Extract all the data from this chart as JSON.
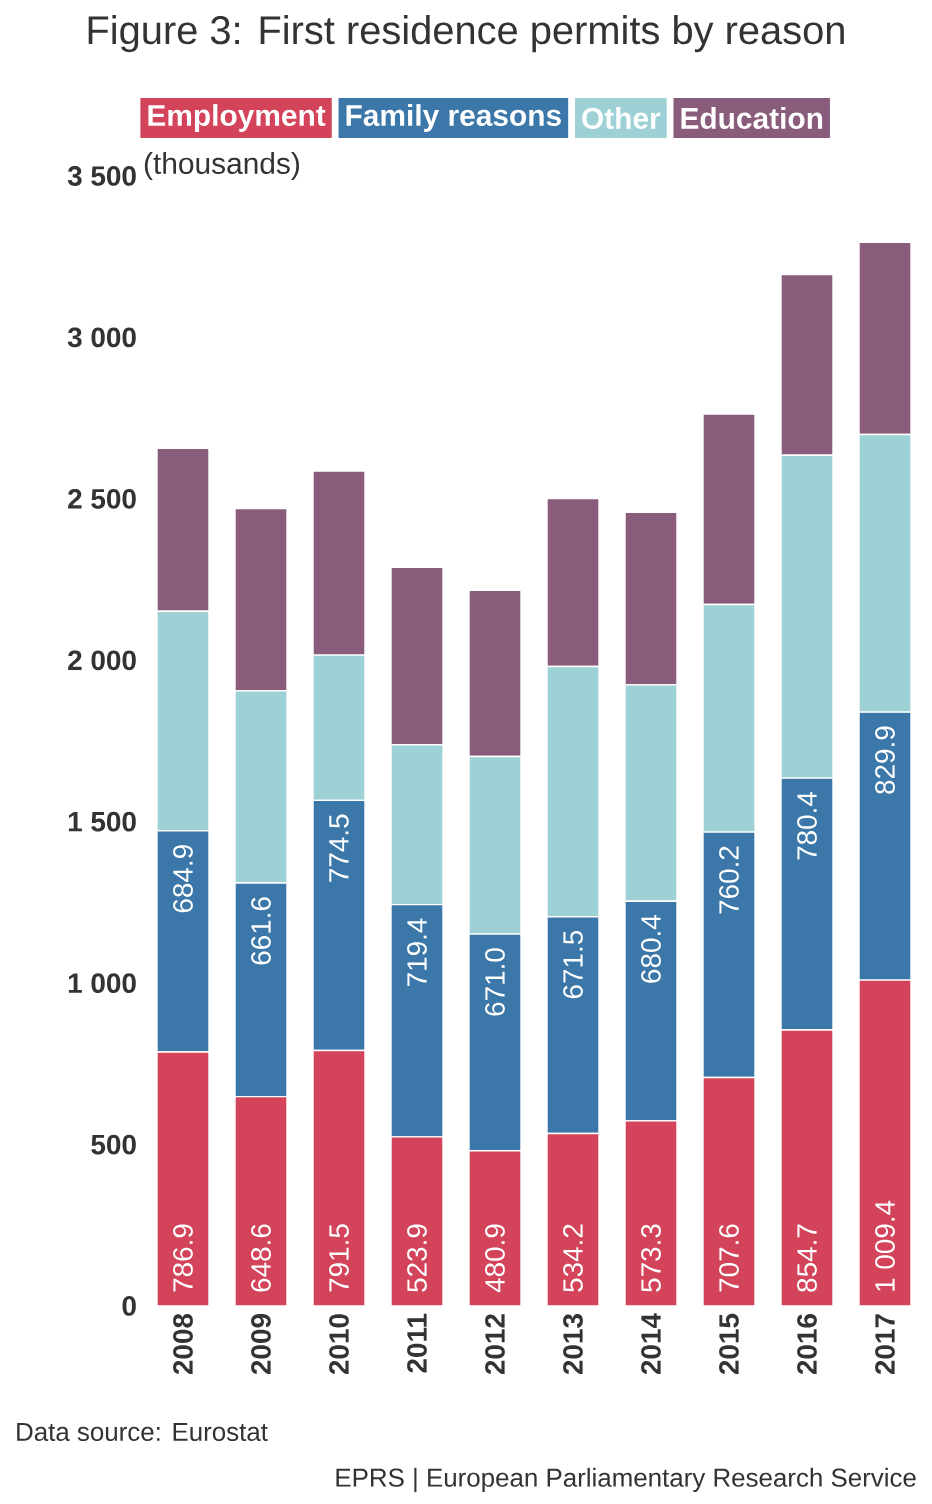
{
  "chart_data": {
    "type": "bar",
    "stacked": true,
    "title": "Figure 3: First residence permits by reason",
    "ylabel": "(thousands)",
    "categories": [
      "2008",
      "2009",
      "2010",
      "2011",
      "2012",
      "2013",
      "2014",
      "2015",
      "2016",
      "2017"
    ],
    "series": [
      {
        "name": "Employment",
        "color": "#d3435a",
        "values": [
          786.9,
          648.6,
          791.5,
          523.9,
          480.9,
          534.2,
          573.3,
          707.6,
          854.7,
          1009.4
        ],
        "value_labels": [
          "786.9",
          "648.6",
          "791.5",
          "523.9",
          "480.9",
          "534.2",
          "573.3",
          "707.6",
          "854.7",
          "1 009.4"
        ]
      },
      {
        "name": "Family reasons",
        "color": "#3b77a8",
        "values": [
          684.9,
          661.6,
          774.5,
          719.4,
          671.0,
          671.5,
          680.4,
          760.2,
          780.4,
          829.9
        ],
        "value_labels": [
          "684.9",
          "661.6",
          "774.5",
          "719.4",
          "671.0",
          "671.5",
          "680.4",
          "760.2",
          "780.4",
          "829.9"
        ]
      },
      {
        "name": "Other",
        "color": "#9dd1d6",
        "values": [
          680,
          595,
          450,
          495,
          550,
          775,
          670,
          705,
          1000,
          860
        ]
      },
      {
        "name": "Education",
        "color": "#8a5c7c",
        "values": [
          505,
          565,
          570,
          550,
          515,
          520,
          535,
          590,
          560,
          595
        ]
      }
    ],
    "ylim": [
      0,
      3500
    ],
    "yticks": [
      0,
      500,
      {
        "value": 1000,
        "label": "1 000"
      },
      {
        "value": 1500,
        "label": "1 500"
      },
      {
        "value": 2000,
        "label": "2 000"
      },
      {
        "value": 2500,
        "label": "2 500"
      },
      {
        "value": 3000,
        "label": "3 000"
      },
      {
        "value": 3500,
        "label": "3 500"
      }
    ],
    "grid": false,
    "legend": "top",
    "annotations": [
      "Data source: Eurostat",
      "EPRS | European Parliamentary Research Service"
    ]
  }
}
